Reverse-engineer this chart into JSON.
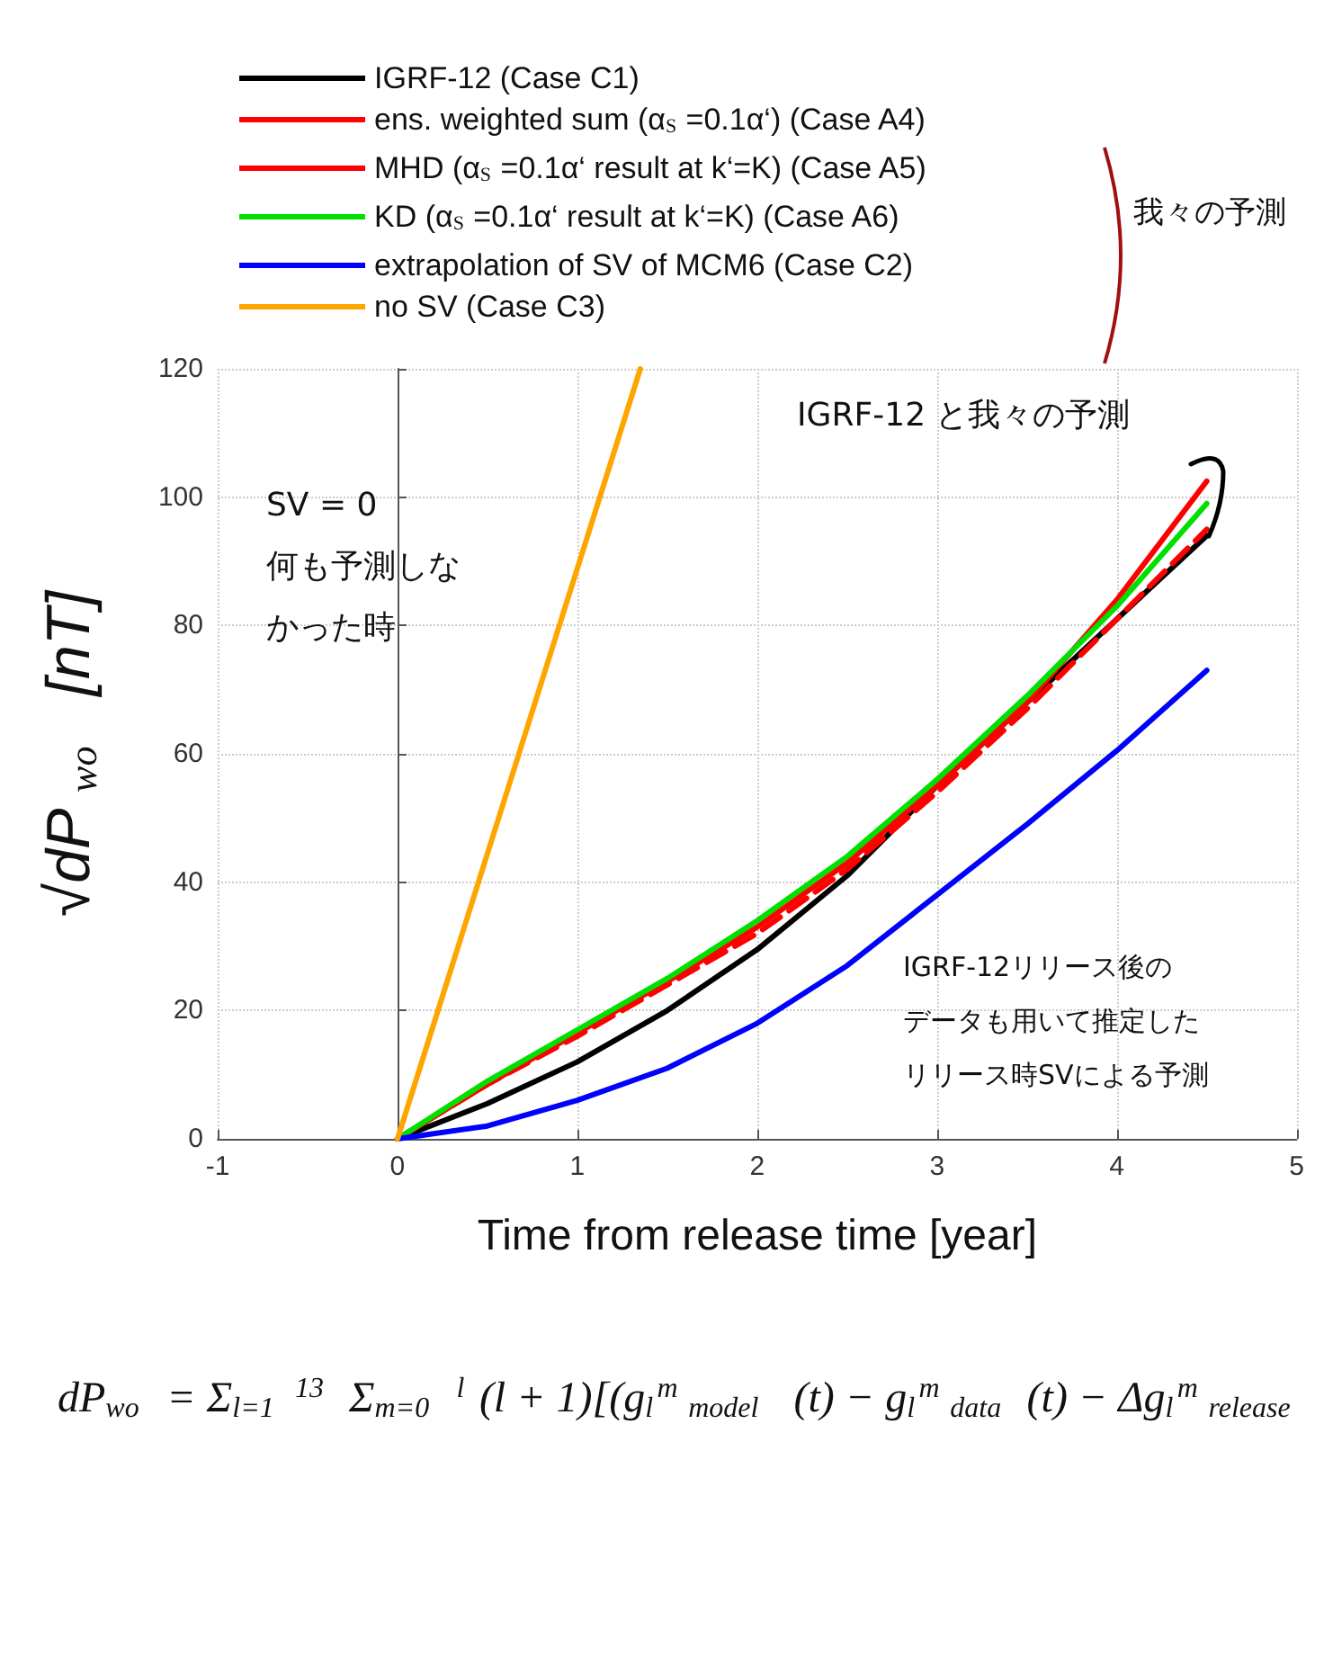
{
  "chart_data": {
    "type": "line",
    "xlabel": "Time from release time [year]",
    "ylabel": "√dP$_{wo}$  [nT]",
    "xlim": [
      -1,
      5
    ],
    "xticks": [
      -1,
      0,
      1,
      2,
      3,
      4,
      5
    ],
    "ylim": [
      0,
      120
    ],
    "yticks": [
      0,
      20,
      40,
      60,
      80,
      100,
      120
    ],
    "grid": true,
    "legend": "top",
    "marker": "none",
    "annotations": [
      "我々の予測",
      "SV = 0",
      "何も予測しな",
      "かった時",
      "IGRF-12 と我々の予測",
      "IGRF-12リリース後の",
      "データも用いて推定した",
      "リリース時SVによる予測",
      "dP$_{wo}$ = Σ$_{l=1}$$^{13}$ Σ$_{m=0}$$^{l}$ (l + 1)[(g$_{l}$$^{m}$$_{model}$(t) − g$_{l}$$^{m}$$_{data}$(t) − Δg$_{l}$$^{m}$$_{release}$)$^{2}$]"
    ],
    "series": [
      {
        "name": "IGRF-12 (Case C1)",
        "color": "#000000",
        "line_style": "solid",
        "x": [
          0,
          0.5,
          1,
          1.5,
          2,
          2.5,
          3,
          3.5,
          4,
          4.5
        ],
        "values": [
          0,
          5.5,
          12,
          20,
          29.5,
          41,
          55,
          68,
          81,
          94
        ]
      },
      {
        "name": "ens. weighted sum (α$_{S}$=0.1α‘) (Case A4)",
        "color": "#ff0000",
        "line_style": "dashed",
        "x": [
          0,
          0.5,
          1,
          1.5,
          2,
          2.5,
          3,
          3.5,
          4,
          4.5
        ],
        "values": [
          0,
          8.5,
          16,
          24,
          32,
          42,
          54,
          67,
          81,
          95
        ]
      },
      {
        "name": "MHD (α$_{S}$=0.1α‘ result at k‘=K) (Case A5)",
        "color": "#ff0000",
        "line_style": "solid",
        "x": [
          0,
          0.5,
          1,
          1.5,
          2,
          2.5,
          3,
          3.5,
          4,
          4.5
        ],
        "values": [
          0,
          8.5,
          16.5,
          24.5,
          33,
          43,
          55,
          68,
          84,
          102.5
        ]
      },
      {
        "name": "KD (α$_{S}$=0.1α‘ result at k‘=K) (Case A6)",
        "color": "#00e000",
        "line_style": "solid",
        "x": [
          0,
          0.5,
          1,
          1.5,
          2,
          2.5,
          3,
          3.5,
          4,
          4.5
        ],
        "values": [
          0,
          9,
          17,
          25,
          34,
          44,
          56,
          69,
          83,
          99
        ]
      },
      {
        "name": "extrapolation of SV of MCM6 (Case C2)",
        "color": "#0000ff",
        "line_style": "solid",
        "x": [
          0,
          0.5,
          1,
          1.5,
          2,
          2.5,
          3,
          3.5,
          4,
          4.5
        ],
        "values": [
          0,
          2,
          6,
          11,
          18,
          27,
          38,
          49,
          60.5,
          73
        ]
      },
      {
        "name": "no SV (Case C3)",
        "color": "#ffa500",
        "line_style": "solid",
        "x": [
          0,
          1.35
        ],
        "values": [
          0,
          120
        ]
      }
    ]
  }
}
